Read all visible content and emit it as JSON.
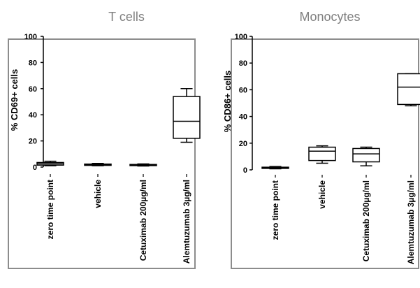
{
  "colors": {
    "frame_border": "#8c8c8c",
    "title": "#808080",
    "axis": "#000000",
    "box_fill": "#ffffff"
  },
  "chart_data": [
    {
      "type": "box",
      "title": "T cells",
      "ylabel": "% CD69+ cells",
      "xlabel": "",
      "ylim": [
        0,
        100
      ],
      "yticks": [
        0,
        20,
        40,
        60,
        80,
        100
      ],
      "grid": false,
      "categories": [
        "zero time point",
        "vehicle",
        "Cetuximab 200µg/ml",
        "Alemtuzumab 3µg/ml"
      ],
      "boxes": [
        {
          "min": 1.0,
          "q1": 1.5,
          "median": 2.5,
          "q3": 3.5,
          "max": 4.5
        },
        {
          "min": 1.0,
          "q1": 1.3,
          "median": 1.7,
          "q3": 2.3,
          "max": 2.8
        },
        {
          "min": 0.8,
          "q1": 1.1,
          "median": 1.5,
          "q3": 2.0,
          "max": 2.4
        },
        {
          "min": 19,
          "q1": 22,
          "median": 35,
          "q3": 54,
          "max": 60
        }
      ]
    },
    {
      "type": "box",
      "title": "Monocytes",
      "ylabel": "% CD86+ cells",
      "xlabel": "",
      "ylim": [
        0,
        100
      ],
      "yticks": [
        0,
        20,
        40,
        60,
        80,
        100
      ],
      "grid": false,
      "categories": [
        "zero time point",
        "vehicle",
        "Cetuximab 200µg/ml",
        "Alemtuzumab 3µg/ml"
      ],
      "boxes": [
        {
          "min": 0.8,
          "q1": 1.1,
          "median": 1.5,
          "q3": 2.0,
          "max": 2.5
        },
        {
          "min": 5,
          "q1": 7,
          "median": 14,
          "q3": 17,
          "max": 18
        },
        {
          "min": 3,
          "q1": 6,
          "median": 12,
          "q3": 16,
          "max": 17
        },
        {
          "min": 48,
          "q1": 49,
          "median": 62,
          "q3": 72,
          "max": 72
        }
      ]
    }
  ]
}
